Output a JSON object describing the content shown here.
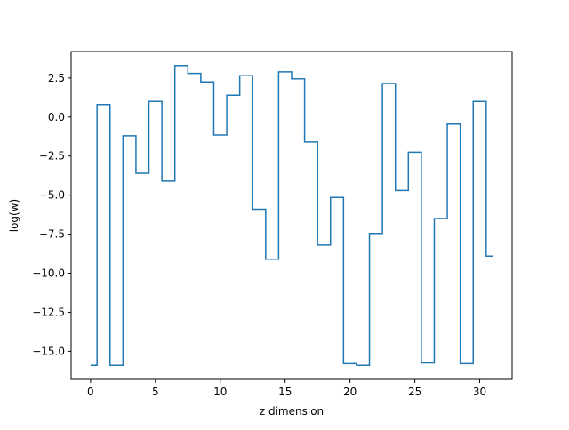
{
  "chart_data": {
    "type": "line",
    "drawstyle": "steps-mid",
    "title": "",
    "xlabel": "z dimension",
    "ylabel": "log(w)",
    "xlim": [
      -1.5,
      32.5
    ],
    "ylim": [
      -16.8,
      4.2
    ],
    "xticks": [
      0,
      5,
      10,
      15,
      20,
      25,
      30
    ],
    "xtick_labels": [
      "0",
      "5",
      "10",
      "15",
      "20",
      "25",
      "30"
    ],
    "yticks": [
      2.5,
      0.0,
      -2.5,
      -5.0,
      -7.5,
      -10.0,
      -12.5,
      -15.0
    ],
    "ytick_labels": [
      "2.5",
      "0.0",
      "−2.5",
      "−5.0",
      "−7.5",
      "−10.0",
      "−12.5",
      "−15.0"
    ],
    "grid": false,
    "legend": false,
    "series": [
      {
        "color": "#1f77b4",
        "x": [
          0,
          1,
          2,
          3,
          4,
          5,
          6,
          7,
          8,
          9,
          10,
          11,
          12,
          13,
          14,
          15,
          16,
          17,
          18,
          19,
          20,
          21,
          22,
          23,
          24,
          25,
          26,
          27,
          28,
          29,
          30,
          31
        ],
        "values": [
          -15.9,
          0.8,
          -15.9,
          -1.2,
          -3.6,
          1.0,
          -4.1,
          3.3,
          2.8,
          2.25,
          -1.15,
          1.4,
          2.65,
          -5.9,
          -9.1,
          2.9,
          2.45,
          -1.6,
          -8.2,
          -5.15,
          -15.8,
          -15.9,
          -7.45,
          2.15,
          -4.7,
          -2.25,
          -15.75,
          -6.5,
          -0.45,
          -15.8,
          1.0,
          -8.9
        ]
      }
    ]
  }
}
